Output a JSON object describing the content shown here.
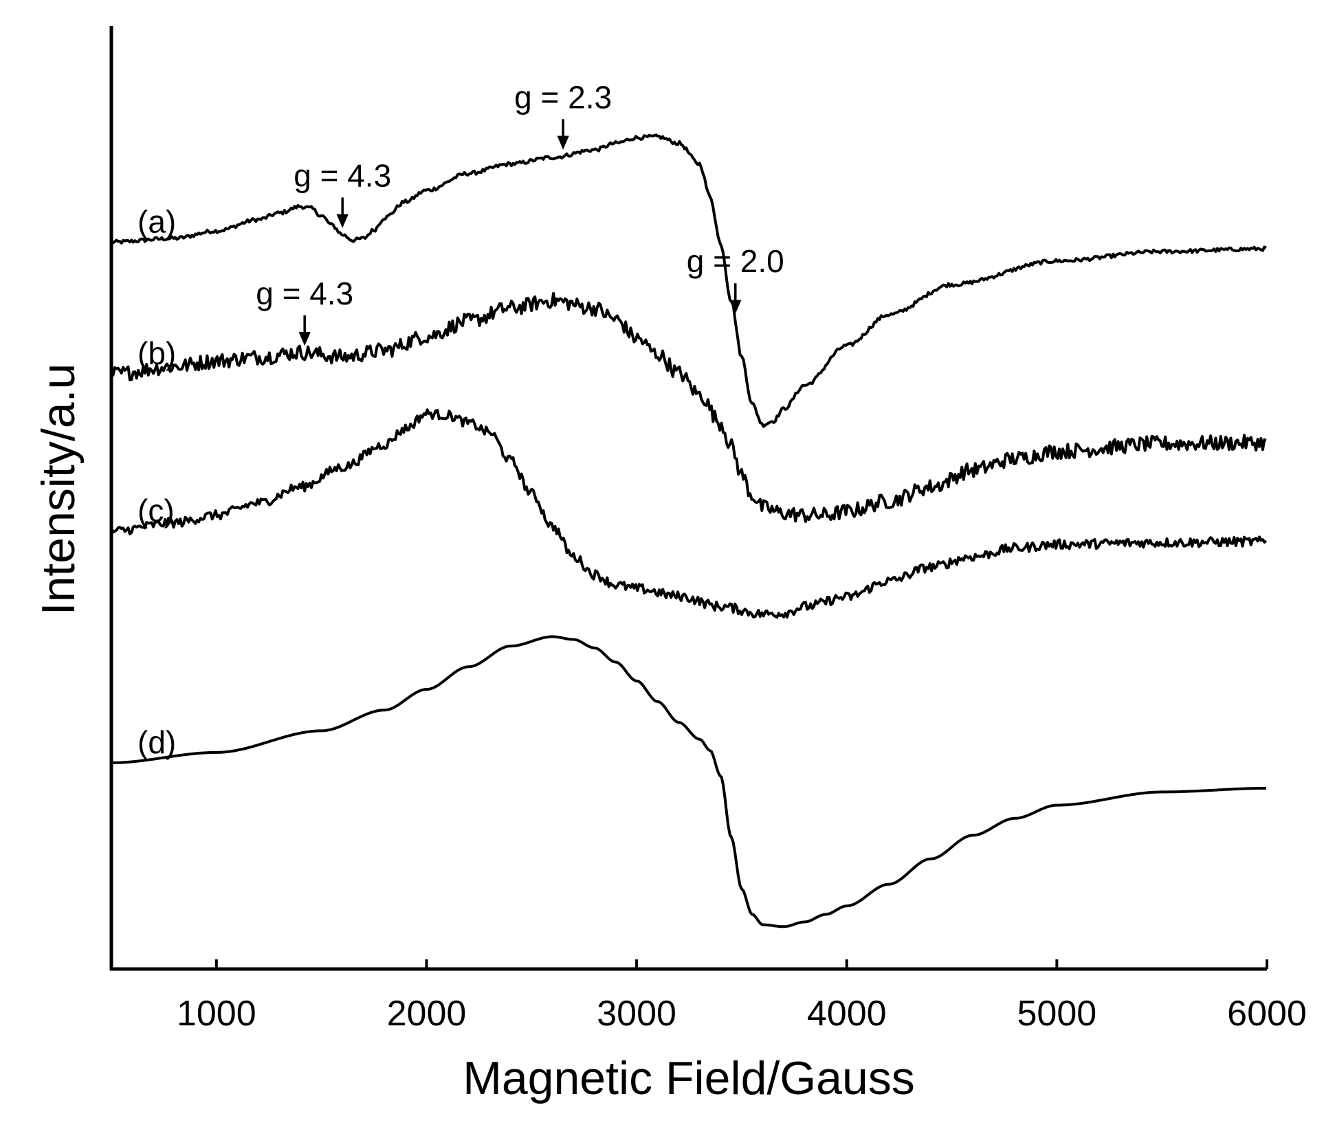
{
  "chart_data": {
    "type": "line",
    "xlabel": "Magnetic Field/Gauss",
    "ylabel": "Intensity/a.u",
    "xlim": [
      500,
      6000
    ],
    "xticks": [
      1000,
      2000,
      3000,
      4000,
      5000,
      6000
    ],
    "grid": false,
    "series": [
      {
        "name": "(a)",
        "noise": 0.002,
        "points": [
          [
            500,
            0.772
          ],
          [
            800,
            0.776
          ],
          [
            1000,
            0.784
          ],
          [
            1200,
            0.796
          ],
          [
            1300,
            0.803
          ],
          [
            1400,
            0.81
          ],
          [
            1450,
            0.808
          ],
          [
            1500,
            0.8
          ],
          [
            1550,
            0.79
          ],
          [
            1600,
            0.78
          ],
          [
            1650,
            0.774
          ],
          [
            1700,
            0.776
          ],
          [
            1750,
            0.785
          ],
          [
            1800,
            0.798
          ],
          [
            1900,
            0.815
          ],
          [
            2000,
            0.827
          ],
          [
            2200,
            0.845
          ],
          [
            2400,
            0.855
          ],
          [
            2600,
            0.862
          ],
          [
            2800,
            0.87
          ],
          [
            2900,
            0.877
          ],
          [
            3000,
            0.883
          ],
          [
            3100,
            0.884
          ],
          [
            3200,
            0.877
          ],
          [
            3300,
            0.855
          ],
          [
            3350,
            0.82
          ],
          [
            3400,
            0.77
          ],
          [
            3450,
            0.71
          ],
          [
            3500,
            0.65
          ],
          [
            3550,
            0.6
          ],
          [
            3600,
            0.578
          ],
          [
            3650,
            0.582
          ],
          [
            3700,
            0.595
          ],
          [
            3800,
            0.62
          ],
          [
            4000,
            0.662
          ],
          [
            4200,
            0.695
          ],
          [
            4500,
            0.727
          ],
          [
            5000,
            0.752
          ],
          [
            5500,
            0.762
          ],
          [
            6000,
            0.765
          ]
        ]
      },
      {
        "name": "(b)",
        "noise": 0.008,
        "points": [
          [
            500,
            0.632
          ],
          [
            800,
            0.64
          ],
          [
            1000,
            0.646
          ],
          [
            1200,
            0.65
          ],
          [
            1400,
            0.655
          ],
          [
            1600,
            0.65
          ],
          [
            1800,
            0.657
          ],
          [
            2000,
            0.672
          ],
          [
            2200,
            0.688
          ],
          [
            2400,
            0.702
          ],
          [
            2600,
            0.71
          ],
          [
            2800,
            0.702
          ],
          [
            2900,
            0.69
          ],
          [
            3000,
            0.67
          ],
          [
            3100,
            0.653
          ],
          [
            3200,
            0.633
          ],
          [
            3300,
            0.61
          ],
          [
            3400,
            0.58
          ],
          [
            3450,
            0.555
          ],
          [
            3500,
            0.525
          ],
          [
            3550,
            0.503
          ],
          [
            3600,
            0.49
          ],
          [
            3700,
            0.484
          ],
          [
            3800,
            0.482
          ],
          [
            3900,
            0.482
          ],
          [
            4000,
            0.486
          ],
          [
            4200,
            0.497
          ],
          [
            4400,
            0.512
          ],
          [
            4600,
            0.53
          ],
          [
            4800,
            0.542
          ],
          [
            5000,
            0.55
          ],
          [
            5500,
            0.558
          ],
          [
            6000,
            0.559
          ]
        ]
      },
      {
        "name": "(c)",
        "noise": 0.005,
        "points": [
          [
            500,
            0.465
          ],
          [
            800,
            0.474
          ],
          [
            1000,
            0.482
          ],
          [
            1200,
            0.495
          ],
          [
            1400,
            0.512
          ],
          [
            1600,
            0.533
          ],
          [
            1800,
            0.557
          ],
          [
            1900,
            0.574
          ],
          [
            2000,
            0.59
          ],
          [
            2100,
            0.588
          ],
          [
            2200,
            0.58
          ],
          [
            2300,
            0.57
          ],
          [
            2400,
            0.54
          ],
          [
            2500,
            0.505
          ],
          [
            2600,
            0.47
          ],
          [
            2700,
            0.438
          ],
          [
            2800,
            0.419
          ],
          [
            2900,
            0.408
          ],
          [
            3000,
            0.404
          ],
          [
            3200,
            0.396
          ],
          [
            3400,
            0.385
          ],
          [
            3600,
            0.377
          ],
          [
            3700,
            0.378
          ],
          [
            3800,
            0.385
          ],
          [
            4000,
            0.395
          ],
          [
            4200,
            0.412
          ],
          [
            4400,
            0.427
          ],
          [
            4600,
            0.438
          ],
          [
            4800,
            0.447
          ],
          [
            5000,
            0.451
          ],
          [
            5500,
            0.453
          ],
          [
            6000,
            0.454
          ]
        ]
      },
      {
        "name": "(d)",
        "noise": 0.0,
        "points": [
          [
            500,
            0.219
          ],
          [
            1000,
            0.23
          ],
          [
            1500,
            0.253
          ],
          [
            1800,
            0.275
          ],
          [
            2000,
            0.297
          ],
          [
            2200,
            0.321
          ],
          [
            2400,
            0.343
          ],
          [
            2600,
            0.353
          ],
          [
            2700,
            0.35
          ],
          [
            2800,
            0.341
          ],
          [
            2900,
            0.326
          ],
          [
            3000,
            0.306
          ],
          [
            3100,
            0.284
          ],
          [
            3200,
            0.262
          ],
          [
            3300,
            0.244
          ],
          [
            3350,
            0.232
          ],
          [
            3400,
            0.205
          ],
          [
            3450,
            0.14
          ],
          [
            3500,
            0.085
          ],
          [
            3550,
            0.058
          ],
          [
            3600,
            0.047
          ],
          [
            3700,
            0.045
          ],
          [
            3800,
            0.05
          ],
          [
            3900,
            0.058
          ],
          [
            4000,
            0.067
          ],
          [
            4200,
            0.09
          ],
          [
            4400,
            0.117
          ],
          [
            4600,
            0.142
          ],
          [
            4800,
            0.16
          ],
          [
            5000,
            0.174
          ],
          [
            5500,
            0.188
          ],
          [
            6000,
            0.192
          ]
        ]
      }
    ],
    "annotations": [
      {
        "text": "g = 4.3",
        "series": "(a)",
        "x": 1600
      },
      {
        "text": "g = 2.3",
        "series": "(a)",
        "x": 2650
      },
      {
        "text": "g = 2.0",
        "series": "(a)",
        "x": 3470
      },
      {
        "text": "g = 4.3",
        "series": "(b)",
        "x": 1420
      }
    ]
  }
}
